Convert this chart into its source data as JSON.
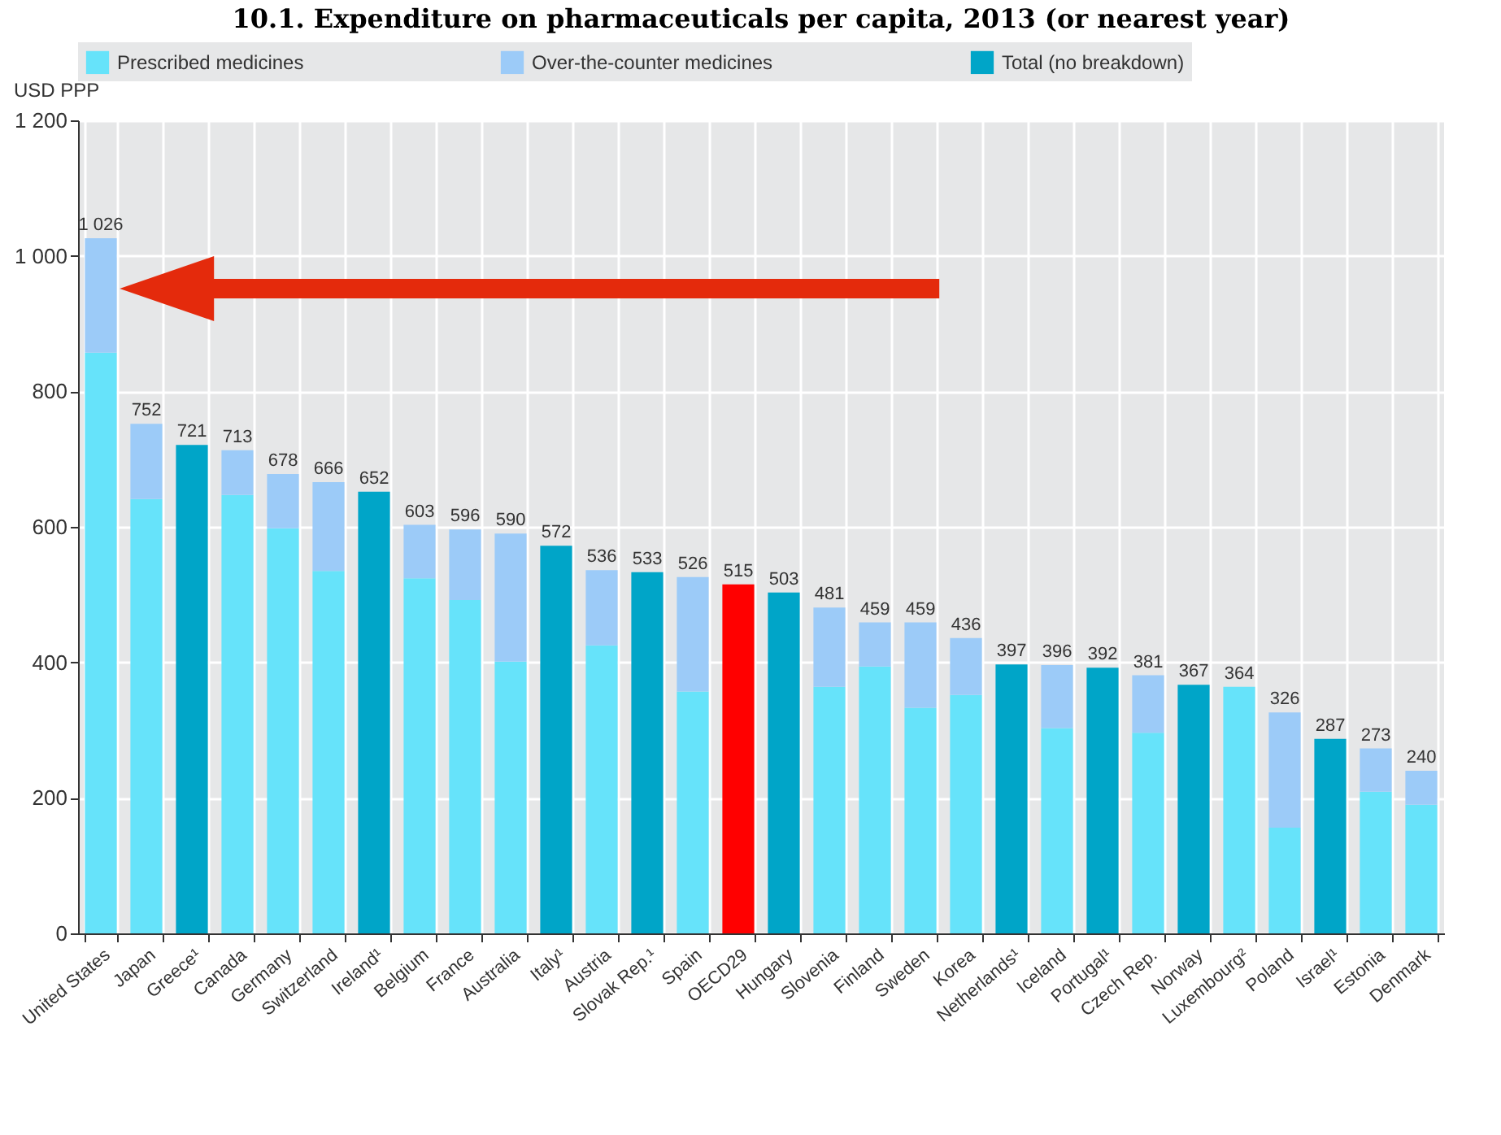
{
  "chart_data": {
    "type": "bar",
    "title": "10.1. Expenditure on pharmaceuticals per capita, 2013 (or nearest year)",
    "ylabel": "USD PPP",
    "categories": [
      "United States",
      "Japan",
      "Greece¹",
      "Canada",
      "Germany",
      "Switzerland",
      "Ireland¹",
      "Belgium",
      "France",
      "Australia",
      "Italy¹",
      "Austria",
      "Slovak Rep.¹",
      "Spain",
      "OECD29",
      "Hungary",
      "Slovenia",
      "Finland",
      "Sweden",
      "Korea",
      "Netherlands¹",
      "Iceland",
      "Portugal¹",
      "Czech Rep.",
      "Norway",
      "Luxembourg²",
      "Poland",
      "Israel¹",
      "Estonia",
      "Denmark"
    ],
    "stacked": true,
    "series": [
      {
        "name": "Prescribed medicines",
        "color": "#66e3fa",
        "values": [
          857,
          641,
          null,
          647,
          598,
          535,
          null,
          524,
          492,
          401,
          null,
          425,
          null,
          357,
          null,
          null,
          364,
          394,
          333,
          352,
          null,
          303,
          null,
          296,
          null,
          364,
          156,
          null,
          209,
          190
        ]
      },
      {
        "name": "Over-the-counter medicines",
        "color": "#9ccbf8",
        "values": [
          169,
          111,
          null,
          66,
          80,
          131,
          null,
          79,
          104,
          189,
          null,
          111,
          null,
          169,
          null,
          null,
          117,
          65,
          126,
          84,
          null,
          93,
          null,
          85,
          null,
          null,
          170,
          null,
          64,
          50
        ]
      },
      {
        "name": "Total (no breakdown)",
        "color": "#00a5c8",
        "values": [
          null,
          null,
          721,
          null,
          null,
          null,
          652,
          null,
          null,
          null,
          572,
          null,
          533,
          null,
          null,
          503,
          null,
          null,
          null,
          null,
          397,
          null,
          392,
          null,
          367,
          null,
          null,
          287,
          null,
          null
        ]
      },
      {
        "color": "#ff0000",
        "values": [
          null,
          null,
          null,
          null,
          null,
          null,
          null,
          null,
          null,
          null,
          null,
          null,
          null,
          null,
          515,
          null,
          null,
          null,
          null,
          null,
          null,
          null,
          null,
          null,
          null,
          null,
          null,
          null,
          null,
          null
        ]
      }
    ],
    "totals": [
      "1 026",
      "752",
      "721",
      "713",
      "678",
      "666",
      "652",
      "603",
      "596",
      "590",
      "572",
      "536",
      "533",
      "526",
      "515",
      "503",
      "481",
      "459",
      "459",
      "436",
      "397",
      "396",
      "392",
      "381",
      "367",
      "364",
      "326",
      "287",
      "273",
      "240"
    ],
    "ylim": [
      0,
      1200
    ],
    "yticks": [
      0,
      200,
      400,
      600,
      800,
      {
        "value": 1000,
        "label": "1 000"
      },
      {
        "value": 1200,
        "label": "1 200"
      }
    ],
    "grid": true,
    "legend": "top"
  }
}
